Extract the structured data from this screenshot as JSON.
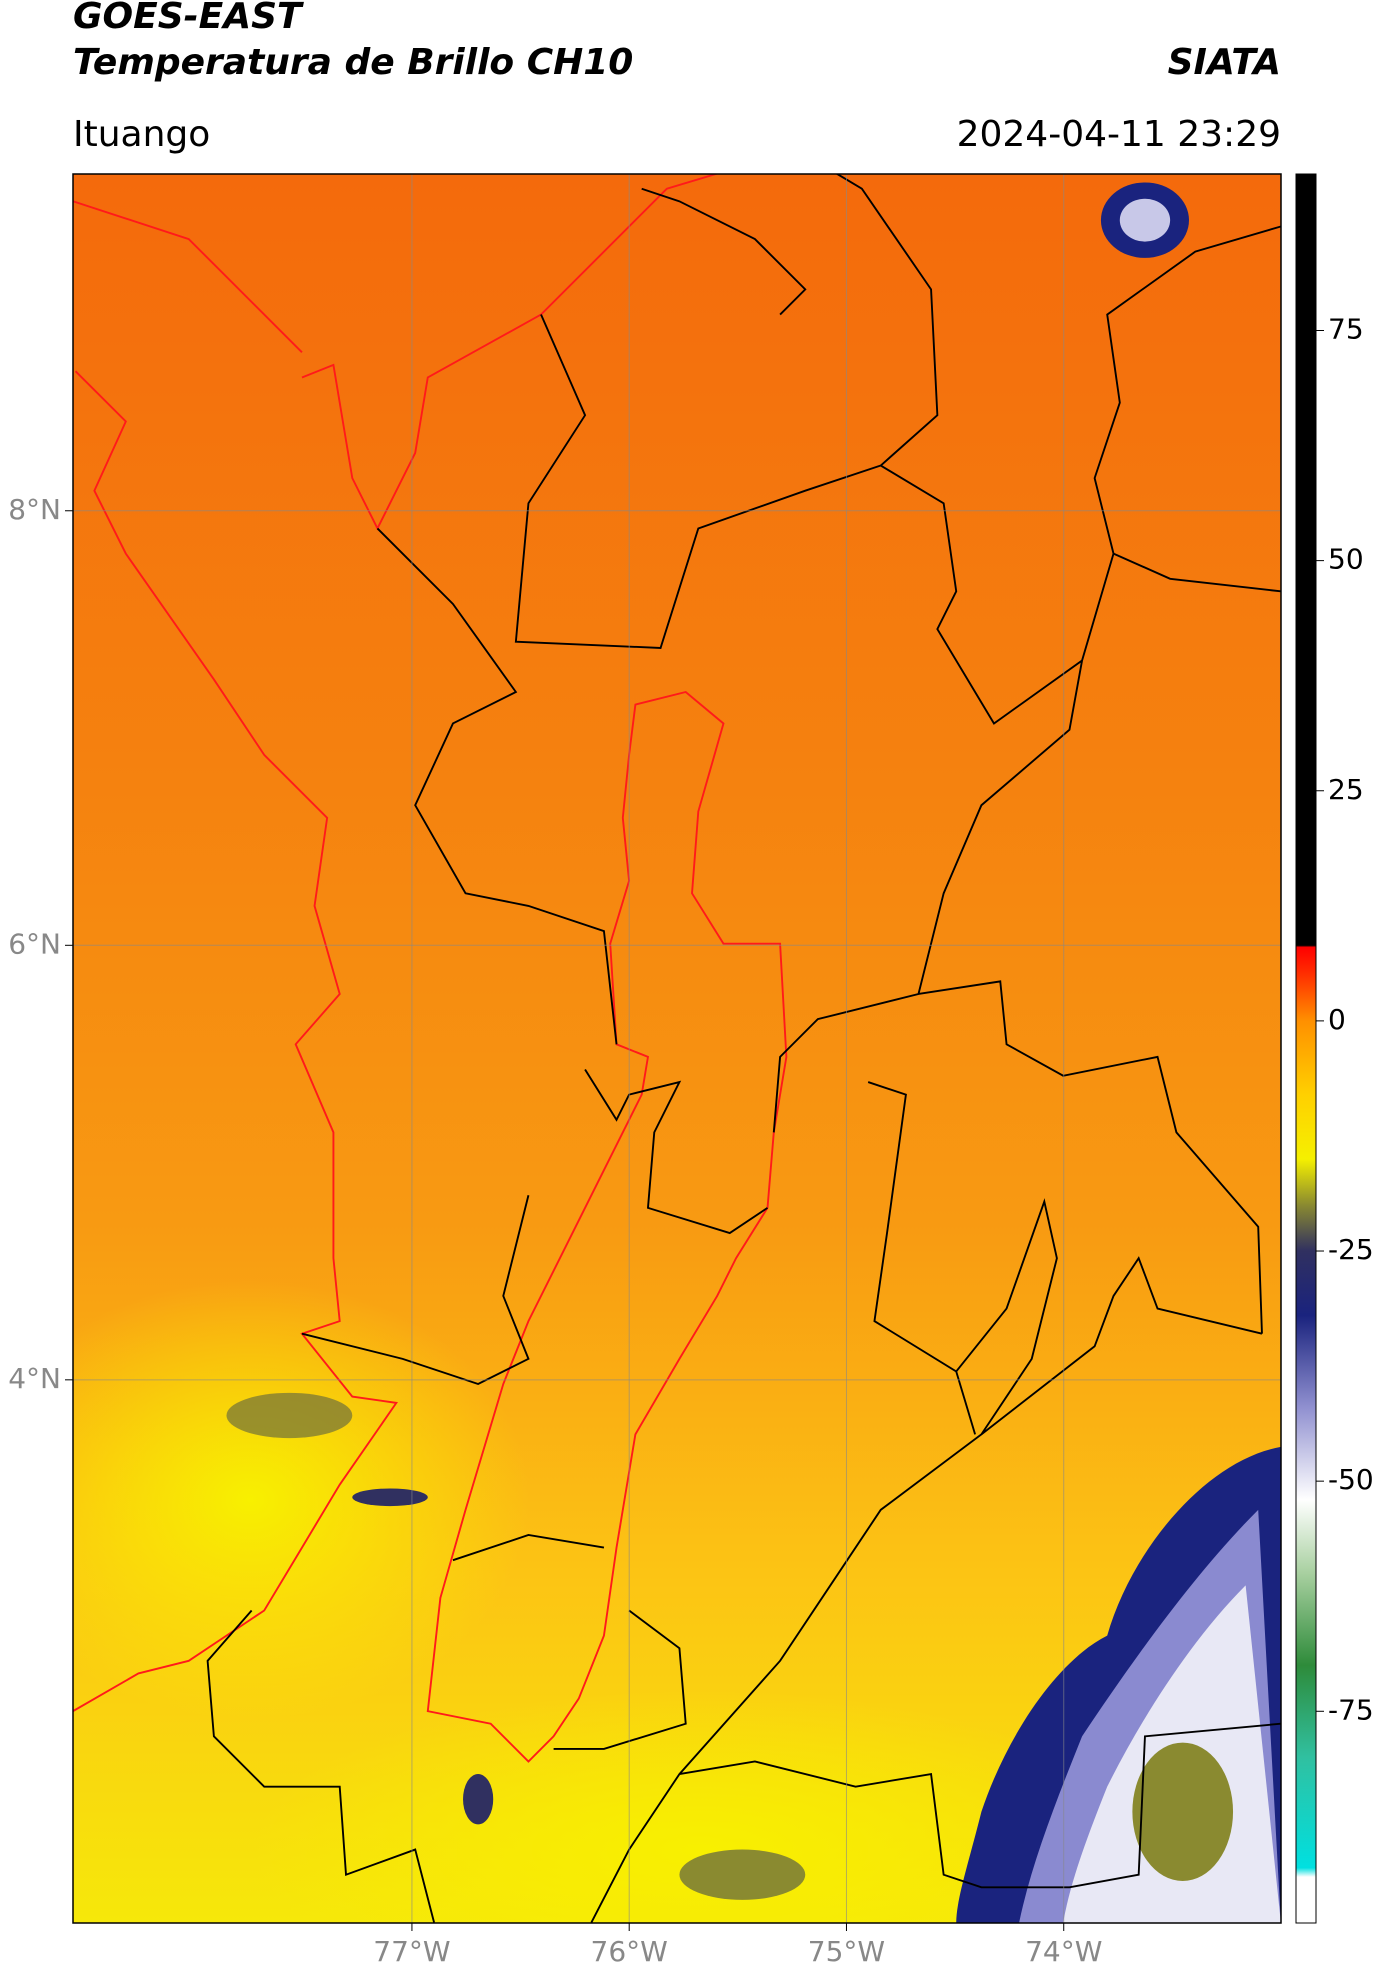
{
  "header": {
    "title": "GOES-EAST",
    "subtitle": "Temperatura de Brillo CH10",
    "source": "SIATA",
    "region": "Ituango",
    "datetime": "2024-04-11 23:29"
  },
  "chart_data": {
    "type": "map",
    "xlim": [
      -78.56,
      -73.0
    ],
    "ylim": [
      1.5,
      9.55
    ],
    "xticks": [
      {
        "value": -77,
        "label": "77°W"
      },
      {
        "value": -76,
        "label": "76°W"
      },
      {
        "value": -75,
        "label": "75°W"
      },
      {
        "value": -74,
        "label": "74°W"
      }
    ],
    "yticks": [
      {
        "value": 4,
        "label": "4°N"
      },
      {
        "value": 6,
        "label": "6°N"
      },
      {
        "value": 8,
        "label": "8°N"
      }
    ],
    "grid": true,
    "colorbar": {
      "clim": [
        -98,
        92
      ],
      "ticks": [
        -75,
        -50,
        -25,
        0,
        25,
        50,
        75
      ],
      "colormap": [
        {
          "value": -98,
          "color": "#ffffff"
        },
        {
          "value": -93,
          "color": "#ffffff"
        },
        {
          "value": -92,
          "color": "#00e0e0"
        },
        {
          "value": -80,
          "color": "#30c0a0"
        },
        {
          "value": -70,
          "color": "#2e8b3a"
        },
        {
          "value": -60,
          "color": "#a8d0a0"
        },
        {
          "value": -52,
          "color": "#ffffff"
        },
        {
          "value": -42,
          "color": "#9090d0"
        },
        {
          "value": -32,
          "color": "#1a237e"
        },
        {
          "value": -25,
          "color": "#303060"
        },
        {
          "value": -20,
          "color": "#8a8a30"
        },
        {
          "value": -15,
          "color": "#f5f000"
        },
        {
          "value": -8,
          "color": "#ffd000"
        },
        {
          "value": 0,
          "color": "#ff9000"
        },
        {
          "value": 5,
          "color": "#ff3000"
        },
        {
          "value": 8,
          "color": "#ff0000"
        },
        {
          "value": 8.2,
          "color": "#000000"
        },
        {
          "value": 92,
          "color": "#000000"
        }
      ]
    }
  }
}
